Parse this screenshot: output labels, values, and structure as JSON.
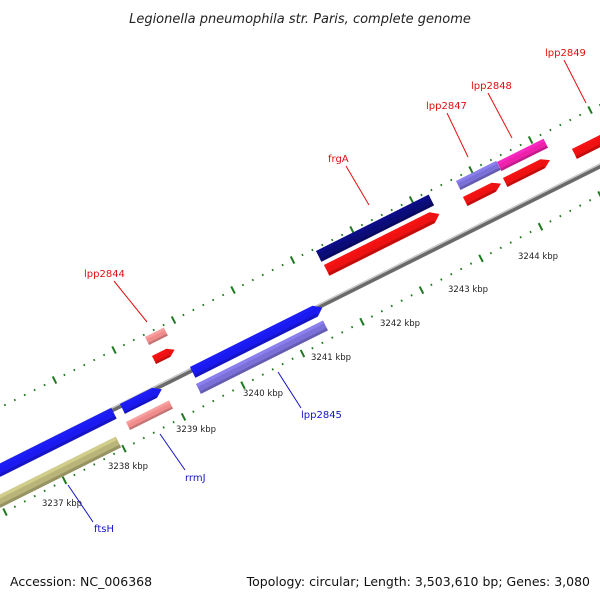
{
  "title": "Legionella pneumophila str. Paris, complete genome",
  "footer": {
    "accession": "Accession: NC_006368",
    "topology": "Topology: circular; Length: 3,503,610 bp; Genes: 3,080"
  },
  "colors": {
    "backbone": "#8c8c8c",
    "tick": "#1e7a1e",
    "label_forward": "#e01010",
    "label_reverse": "#1414c8",
    "gene_red": "#ee1111",
    "gene_pink": "#f08c8c",
    "gene_magenta": "#ee22aa",
    "gene_blue": "#1a1af0",
    "gene_navy": "#0c0c78",
    "gene_lavender": "#7a70d8",
    "gene_olive": "#b8b47a"
  },
  "scale_labels": [
    "3237 kbp",
    "3238 kbp",
    "3239 kbp",
    "3240 kbp",
    "3241 kbp",
    "3242 kbp",
    "3243 kbp",
    "3244 kbp"
  ],
  "gene_labels": [
    {
      "name": "lpp2849",
      "strand": "forward"
    },
    {
      "name": "lpp2848",
      "strand": "forward"
    },
    {
      "name": "lpp2847",
      "strand": "forward"
    },
    {
      "name": "frgA",
      "strand": "forward"
    },
    {
      "name": "lpp2844",
      "strand": "forward"
    },
    {
      "name": "lpp2845",
      "strand": "reverse"
    },
    {
      "name": "rrmJ",
      "strand": "reverse"
    },
    {
      "name": "ftsH",
      "strand": "reverse"
    }
  ],
  "features": [
    {
      "id": "olive-bar",
      "track": "reverse-outer",
      "color_key": "gene_olive"
    },
    {
      "id": "ftsH-gene",
      "track": "reverse",
      "color_key": "gene_blue"
    },
    {
      "id": "rrmJ-gene",
      "track": "reverse",
      "color_key": "gene_blue"
    },
    {
      "id": "lpp2845-gene",
      "track": "reverse",
      "color_key": "gene_blue"
    },
    {
      "id": "lpp2845-cds",
      "track": "reverse-outer",
      "color_key": "gene_lavender"
    },
    {
      "id": "pink-small-gene",
      "track": "reverse-outer",
      "color_key": "gene_pink"
    },
    {
      "id": "lpp2844-gene",
      "track": "forward",
      "color_key": "gene_red"
    },
    {
      "id": "lpp2844-cds",
      "track": "forward-outer",
      "color_key": "gene_pink"
    },
    {
      "id": "frgA-gene",
      "track": "forward",
      "color_key": "gene_red"
    },
    {
      "id": "frgA-cds",
      "track": "forward-outer",
      "color_key": "gene_navy"
    },
    {
      "id": "lpp2847-gene",
      "track": "forward",
      "color_key": "gene_red"
    },
    {
      "id": "lpp2847-cds",
      "track": "forward-outer",
      "color_key": "gene_lavender"
    },
    {
      "id": "lpp2848-gene",
      "track": "forward",
      "color_key": "gene_red"
    },
    {
      "id": "lpp2848-cds",
      "track": "forward-outer",
      "color_key": "gene_magenta"
    },
    {
      "id": "lpp2849-gene",
      "track": "forward-outer",
      "color_key": "gene_red"
    }
  ]
}
